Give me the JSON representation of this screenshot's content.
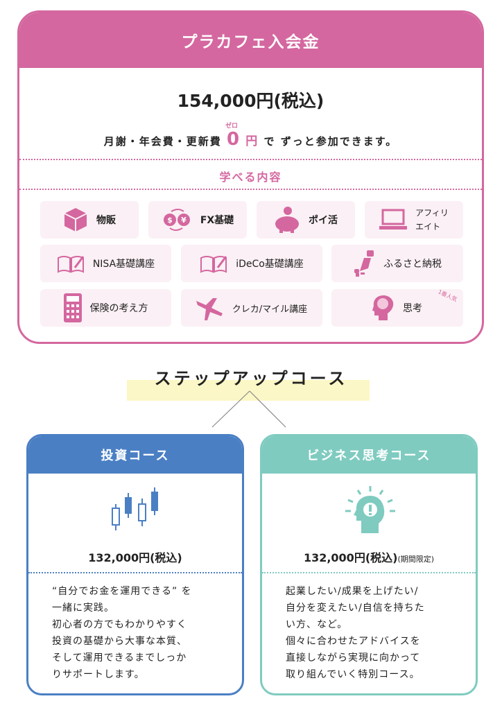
{
  "main": {
    "title": "プラカフェ入会金",
    "price": "154,000円(税込)",
    "fee_prefix": "月謝・年会費・更新費",
    "zero": "0",
    "zero_ruby": "ゼロ",
    "yen": "円",
    "fee_suffix": "で ずっと参加できます。",
    "learn_title": "学べる内容",
    "items": [
      {
        "label": "物販",
        "icon": "box-icon"
      },
      {
        "label": "FX基礎",
        "icon": "currency-exchange-icon"
      },
      {
        "label": "ポイ活",
        "icon": "piggy-bank-icon"
      },
      {
        "label": "アフィリ\nエイト",
        "icon": "laptop-icon"
      },
      {
        "label": "NISA基礎講座",
        "icon": "book-pen-icon"
      },
      {
        "label": "iDeCo基礎講座",
        "icon": "book-pen-icon"
      },
      {
        "label": "ふるさと納税",
        "icon": "japan-map-icon"
      },
      {
        "label": "保険の考え方",
        "icon": "calculator-icon"
      },
      {
        "label": "クレカ/マイル講座",
        "icon": "airplane-icon"
      },
      {
        "label": "思考",
        "icon": "brain-head-icon",
        "badge": "1番人気"
      }
    ]
  },
  "step_title": "ステップアップコース",
  "colors": {
    "pink": "#d4679f",
    "blue": "#4a7fc4",
    "teal": "#7fcbc0",
    "highlight": "#fbf7c6"
  },
  "courses": [
    {
      "title": "投資コース",
      "price": "132,000円(税込)",
      "note": "",
      "icon": "candlestick-chart-icon",
      "desc": "“自分でお金を運用できる” を\n一緒に実践。\n初心者の方でもわかりやすく\n投資の基礎から大事な本質、\nそして運用できるまでしっか\nりサポートします。"
    },
    {
      "title": "ビジネス思考コース",
      "price": "132,000円(税込)",
      "note": "(期間限定)",
      "icon": "idea-head-icon",
      "desc": "起業したい/成果を上げたい/\n自分を変えたい/自信を持ちた\nい方、など。\n個々に合わせたアドバイスを\n直接しながら実現に向かって\n取り組んでいく特別コース。"
    }
  ]
}
